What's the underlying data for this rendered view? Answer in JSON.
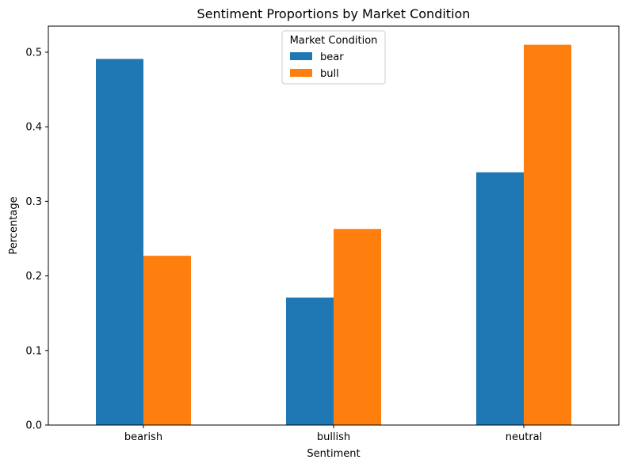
{
  "chart_data": {
    "type": "bar",
    "title": "Sentiment Proportions by Market Condition",
    "xlabel": "Sentiment",
    "ylabel": "Percentage",
    "categories": [
      "bearish",
      "bullish",
      "neutral"
    ],
    "series": [
      {
        "name": "bear",
        "color": "#1f77b4",
        "values": [
          0.491,
          0.171,
          0.339
        ]
      },
      {
        "name": "bull",
        "color": "#ff7f0e",
        "values": [
          0.227,
          0.263,
          0.51
        ]
      }
    ],
    "ylim": [
      0,
      0.535
    ],
    "yticks": [
      "0.0",
      "0.1",
      "0.2",
      "0.3",
      "0.4",
      "0.5"
    ],
    "legend": {
      "title": "Market Condition",
      "placement": "top-center"
    },
    "grid": false
  }
}
